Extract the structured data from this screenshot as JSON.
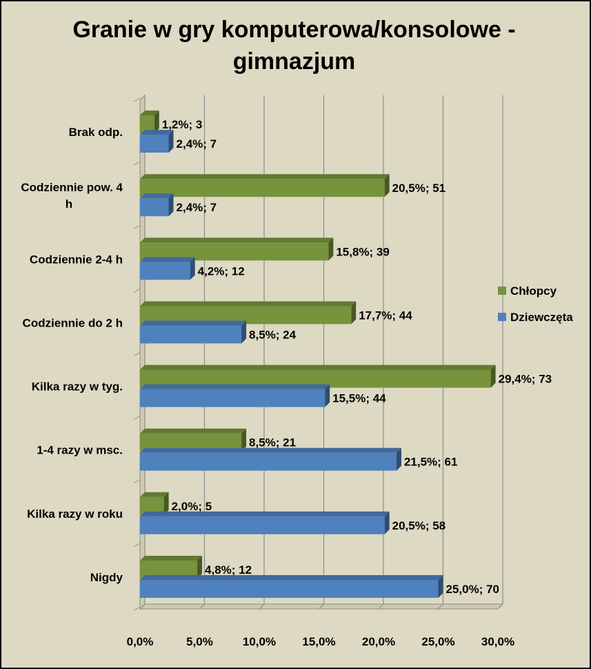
{
  "chart_data": {
    "type": "bar",
    "orientation": "horizontal",
    "title": "Granie w gry komputerowa/konsolowe - gimnazjum",
    "title_lines": [
      "Granie w gry komputerowa/konsolowe -",
      "gimnazjum"
    ],
    "categories": [
      "Brak odp.",
      "Codziennie pow. 4 h",
      "Codziennie 2-4 h",
      "Codziennie do 2 h",
      "Kilka razy w tyg.",
      "1-4 razy w msc.",
      "Kilka razy w roku",
      "Nigdy"
    ],
    "category_label_lines": [
      [
        "Brak odp."
      ],
      [
        "Codziennie pow. 4",
        "h"
      ],
      [
        "Codziennie 2-4 h"
      ],
      [
        "Codziennie do 2 h"
      ],
      [
        "Kilka razy w tyg."
      ],
      [
        "1-4 razy w msc."
      ],
      [
        "Kilka razy w roku"
      ],
      [
        "Nigdy"
      ]
    ],
    "series": [
      {
        "name": "Chłopcy",
        "color": "#77933c",
        "values": [
          1.2,
          20.5,
          15.8,
          17.7,
          29.4,
          8.5,
          2.0,
          4.8
        ],
        "labels": [
          "1,2%; 3",
          "20,5%; 51",
          "15,8%; 39",
          "17,7%; 44",
          "29,4%; 73",
          "8,5%; 21",
          "2,0%; 5",
          "4,8%; 12"
        ]
      },
      {
        "name": "Dziewczęta",
        "color": "#4f81bd",
        "values": [
          2.4,
          2.4,
          4.2,
          8.5,
          15.5,
          21.5,
          20.5,
          25.0
        ],
        "labels": [
          "2,4%; 7",
          "2,4%; 7",
          "4,2%; 12",
          "8,5%; 24",
          "15,5%; 44",
          "21,5%; 61",
          "20,5%; 58",
          "25,0%; 70"
        ]
      }
    ],
    "xlim": [
      0,
      30
    ],
    "xticks": [
      "0,0%",
      "5,0%",
      "10,0%",
      "15,0%",
      "20,0%",
      "25,0%",
      "30,0%"
    ],
    "grid": true,
    "legend": "right",
    "background": "#ddd9c3"
  }
}
